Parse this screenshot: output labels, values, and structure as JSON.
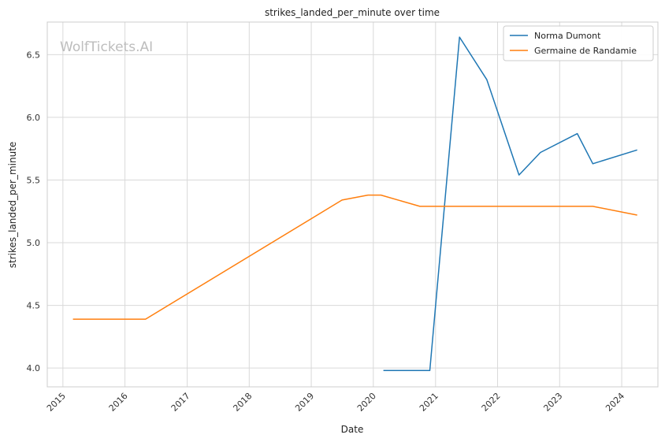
{
  "chart_data": {
    "type": "line",
    "title": "strikes_landed_per_minute over time",
    "xlabel": "Date",
    "ylabel": "strikes_landed_per_minute",
    "watermark": "WolfTickets.AI",
    "x_ticks": [
      "2015",
      "2016",
      "2017",
      "2018",
      "2019",
      "2020",
      "2021",
      "2022",
      "2023",
      "2024"
    ],
    "y_ticks": [
      "4.0",
      "4.5",
      "5.0",
      "5.5",
      "6.0",
      "6.5"
    ],
    "xlim": [
      "2014-10-01",
      "2024-08-01"
    ],
    "ylim": [
      3.85,
      6.76
    ],
    "grid": true,
    "legend_position": "top-right",
    "series": [
      {
        "name": "Norma Dumont",
        "color": "#1f77b4",
        "points": [
          [
            "2020-02-29",
            3.98
          ],
          [
            "2020-11-28",
            3.98
          ],
          [
            "2021-05-22",
            6.64
          ],
          [
            "2021-10-30",
            6.3
          ],
          [
            "2022-05-07",
            5.54
          ],
          [
            "2022-09-10",
            5.72
          ],
          [
            "2023-04-15",
            5.87
          ],
          [
            "2023-07-15",
            5.63
          ],
          [
            "2024-04-01",
            5.74
          ]
        ]
      },
      {
        "name": "Germaine de Randamie",
        "color": "#ff7f0e",
        "points": [
          [
            "2015-03-01",
            4.39
          ],
          [
            "2016-05-01",
            4.39
          ],
          [
            "2019-07-01",
            5.34
          ],
          [
            "2019-12-01",
            5.38
          ],
          [
            "2020-02-15",
            5.38
          ],
          [
            "2020-10-01",
            5.29
          ],
          [
            "2023-07-15",
            5.29
          ],
          [
            "2024-04-01",
            5.22
          ]
        ]
      }
    ]
  }
}
